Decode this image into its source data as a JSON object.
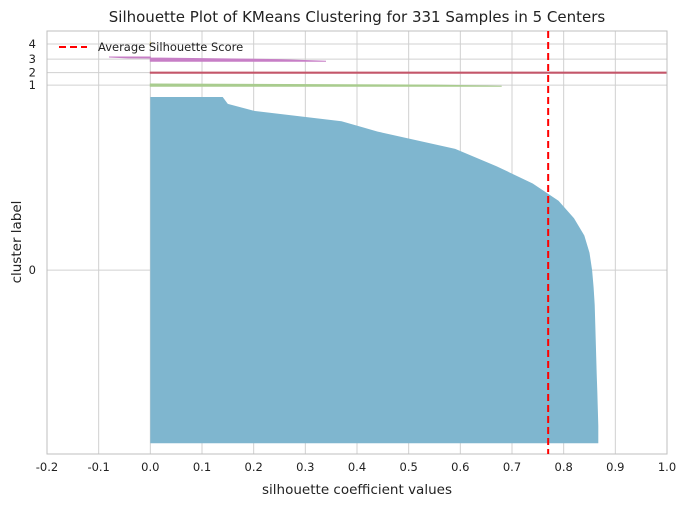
{
  "chart_data": {
    "type": "silhouette",
    "title": "Silhouette Plot of KMeans Clustering for 331 Samples in 5 Centers",
    "xlabel": "silhouette coefficient values",
    "ylabel": "cluster label",
    "xlim": [
      -0.2,
      1.0
    ],
    "xticks": [
      "-0.2",
      "-0.1",
      "0.0",
      "0.1",
      "0.2",
      "0.3",
      "0.4",
      "0.5",
      "0.6",
      "0.7",
      "0.8",
      "0.9",
      "1.0"
    ],
    "yticks": [
      "0",
      "1",
      "2",
      "3",
      "4"
    ],
    "grid": true,
    "legend": {
      "label": "Average Silhouette Score",
      "placement": "top-left"
    },
    "average_silhouette_score": 0.77,
    "clusters": [
      {
        "label": "0",
        "color": "#7fb6cf",
        "size": 320,
        "profile": [
          [
            0,
            0.867
          ],
          [
            0.05,
            0.867
          ],
          [
            0.1,
            0.866
          ],
          [
            0.15,
            0.865
          ],
          [
            0.2,
            0.864
          ],
          [
            0.25,
            0.863
          ],
          [
            0.3,
            0.862
          ],
          [
            0.35,
            0.861
          ],
          [
            0.4,
            0.86
          ],
          [
            0.45,
            0.858
          ],
          [
            0.5,
            0.855
          ],
          [
            0.55,
            0.85
          ],
          [
            0.6,
            0.84
          ],
          [
            0.65,
            0.82
          ],
          [
            0.7,
            0.79
          ],
          [
            0.75,
            0.74
          ],
          [
            0.8,
            0.67
          ],
          [
            0.85,
            0.59
          ],
          [
            0.9,
            0.44
          ],
          [
            0.93,
            0.37
          ],
          [
            0.96,
            0.2
          ],
          [
            0.98,
            0.15
          ],
          [
            1.0,
            0.14
          ]
        ]
      },
      {
        "label": "1",
        "color": "#a9cc8e",
        "size": 2,
        "profile": [
          [
            0,
            0.68
          ],
          [
            0.5,
            0.55
          ],
          [
            1.0,
            0.0
          ]
        ]
      },
      {
        "label": "2",
        "color": "#c4576a",
        "size": 1,
        "profile": [
          [
            0,
            1.0
          ],
          [
            1.0,
            1.0
          ]
        ]
      },
      {
        "label": "3",
        "color": "#c77fc6",
        "size": 4,
        "profile": [
          [
            0,
            0.34
          ],
          [
            0.4,
            0.25
          ],
          [
            0.75,
            0.0
          ],
          [
            0.8,
            -0.05
          ],
          [
            1.0,
            -0.08
          ]
        ]
      },
      {
        "label": "4",
        "color": "#d9c76b",
        "size": 4,
        "profile": [
          [
            0,
            0.0
          ],
          [
            1.0,
            0.0
          ]
        ]
      }
    ],
    "colors": {
      "avg_line": "#ff0000",
      "grid": "#d0d0d0",
      "text": "#222222"
    }
  }
}
